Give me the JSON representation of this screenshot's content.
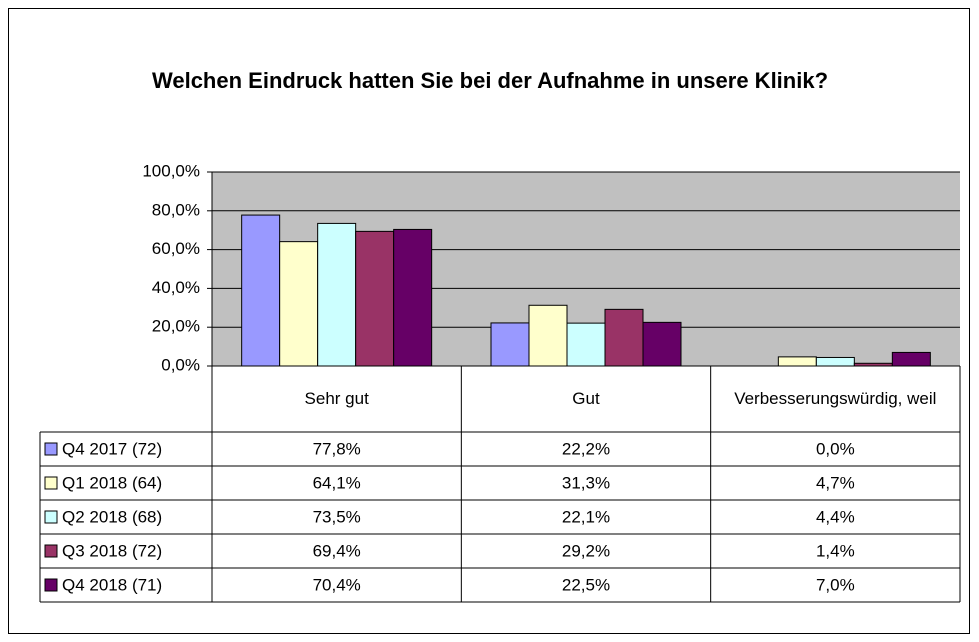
{
  "chart_data": {
    "type": "bar",
    "title": "Welchen Eindruck hatten Sie bei der Aufnahme in unsere Klinik?",
    "categories": [
      "Sehr gut",
      "Gut",
      "Verbesserungswürdig, weil"
    ],
    "series": [
      {
        "name": "Q4 2017 (72)",
        "color": "#9999ff",
        "values": [
          77.8,
          22.2,
          0.0
        ],
        "value_labels": [
          "77,8%",
          "22,2%",
          "0,0%"
        ]
      },
      {
        "name": "Q1 2018 (64)",
        "color": "#ffffcc",
        "values": [
          64.1,
          31.3,
          4.7
        ],
        "value_labels": [
          "64,1%",
          "31,3%",
          "4,7%"
        ]
      },
      {
        "name": "Q2 2018 (68)",
        "color": "#ccffff",
        "values": [
          73.5,
          22.1,
          4.4
        ],
        "value_labels": [
          "73,5%",
          "22,1%",
          "4,4%"
        ]
      },
      {
        "name": "Q3 2018 (72)",
        "color": "#993366",
        "values": [
          69.4,
          29.2,
          1.4
        ],
        "value_labels": [
          "69,4%",
          "29,2%",
          "1,4%"
        ]
      },
      {
        "name": "Q4 2018 (71)",
        "color": "#660066",
        "values": [
          70.4,
          22.5,
          7.0
        ],
        "value_labels": [
          "70,4%",
          "22,5%",
          "7,0%"
        ]
      }
    ],
    "ylim": [
      0,
      100
    ],
    "yticks": [
      {
        "value": 0,
        "label": "0,0%"
      },
      {
        "value": 20,
        "label": "20,0%"
      },
      {
        "value": 40,
        "label": "40,0%"
      },
      {
        "value": 60,
        "label": "60,0%"
      },
      {
        "value": 80,
        "label": "80,0%"
      },
      {
        "value": 100,
        "label": "100,0%"
      }
    ],
    "grid": true
  }
}
